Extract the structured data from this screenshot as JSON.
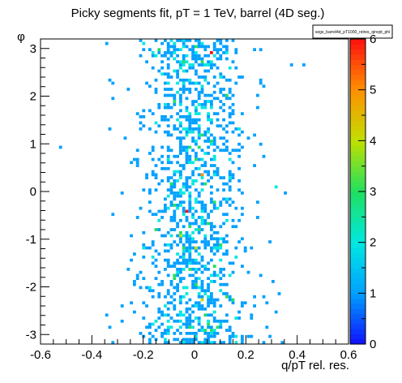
{
  "chart_data": {
    "type": "heatmap",
    "title": "Picky segments fit, pT = 1 TeV, barrel (4D seg.)",
    "xlabel": "q/pT rel. res.",
    "ylabel": "φ",
    "xlim": [
      -0.6,
      0.6
    ],
    "ylim": [
      -3.2,
      3.2
    ],
    "zlim": [
      0,
      6
    ],
    "x_ticks": [
      "-0.6",
      "-0.4",
      "-0.2",
      "0",
      "0.2",
      "0.4",
      "0.6"
    ],
    "y_ticks": [
      "-3",
      "-2",
      "-1",
      "0",
      "1",
      "2",
      "3"
    ],
    "z_ticks": [
      "0",
      "1",
      "2",
      "3",
      "4",
      "5",
      "6"
    ],
    "legend": {
      "text": "segs_barrel4d_pT1000_relres_qinvpt_phi",
      "position": "top-right"
    },
    "bins": {
      "nx": 100,
      "ny": 100
    },
    "colorscale": [
      "#1010ff",
      "#00a0ff",
      "#00e8e0",
      "#20e060",
      "#c0e000",
      "#ff9000",
      "#ff1010"
    ],
    "distribution": "occupied bins clustered around q/pT rel. res. = 0 (mostly between -0.25 and 0.25) across the full phi range; most bins hold 1 entry, a few 2-3, and one bin near (-0.03, -0.4) reaches about 6 entries",
    "peak": {
      "x": -0.03,
      "y": -0.4,
      "z": 6
    },
    "grid": false
  }
}
